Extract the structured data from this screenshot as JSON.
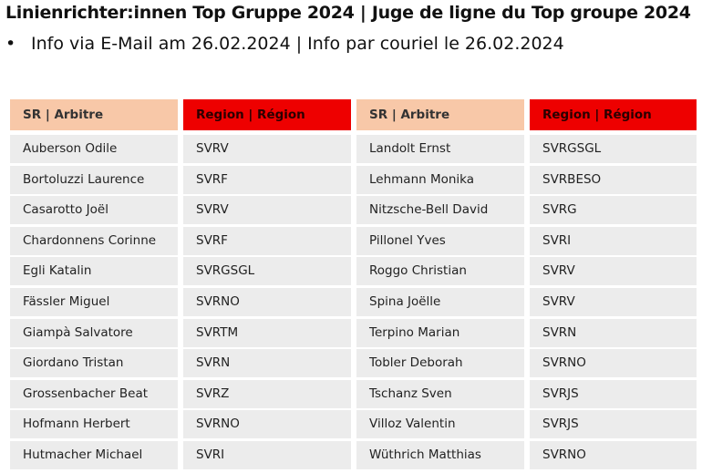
{
  "header": {
    "title": "Linienrichter:innen Top Gruppe 2024 | Juge de ligne du Top groupe 2024",
    "bullet": "•",
    "subtitle": "Info via E-Mail am 26.02.2024 | Info par couriel le 26.02.2024"
  },
  "colors": {
    "sr_header": "#f8c8a8",
    "region_header": "#ee0000",
    "row_bg": "#ececec"
  },
  "tables": [
    {
      "sr_header": "SR | Arbitre",
      "region_header": "Region | Région",
      "rows": [
        {
          "name": "Auberson Odile",
          "region": "SVRV"
        },
        {
          "name": "Bortoluzzi Laurence",
          "region": "SVRF"
        },
        {
          "name": "Casarotto Joël",
          "region": "SVRV"
        },
        {
          "name": "Chardonnens Corinne",
          "region": "SVRF"
        },
        {
          "name": "Egli Katalin",
          "region": "SVRGSGL"
        },
        {
          "name": "Fässler Miguel",
          "region": "SVRNO"
        },
        {
          "name": "Giampà Salvatore",
          "region": "SVRTM"
        },
        {
          "name": "Giordano Tristan",
          "region": "SVRN"
        },
        {
          "name": "Grossenbacher Beat",
          "region": "SVRZ"
        },
        {
          "name": "Hofmann Herbert",
          "region": "SVRNO"
        },
        {
          "name": "Hutmacher Michael",
          "region": "SVRI"
        }
      ]
    },
    {
      "sr_header": "SR | Arbitre",
      "region_header": "Region | Région",
      "rows": [
        {
          "name": "Landolt Ernst",
          "region": "SVRGSGL"
        },
        {
          "name": "Lehmann Monika",
          "region": "SVRBESO"
        },
        {
          "name": "Nitzsche-Bell David",
          "region": "SVRG"
        },
        {
          "name": "Pillonel Yves",
          "region": "SVRI"
        },
        {
          "name": "Roggo Christian",
          "region": "SVRV"
        },
        {
          "name": "Spina Joëlle",
          "region": "SVRV"
        },
        {
          "name": "Terpino Marian",
          "region": "SVRN"
        },
        {
          "name": "Tobler Deborah",
          "region": "SVRNO"
        },
        {
          "name": "Tschanz Sven",
          "region": "SVRJS"
        },
        {
          "name": "Villoz Valentin",
          "region": "SVRJS"
        },
        {
          "name": "Wüthrich Matthias",
          "region": "SVRNO"
        }
      ]
    }
  ]
}
